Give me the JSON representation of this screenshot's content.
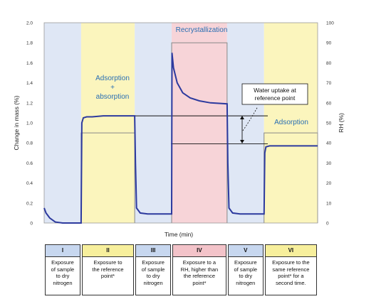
{
  "chart_data": {
    "type": "line",
    "xlabel": "Time (min)",
    "ylabel": "Change in mass (%)",
    "ylabel_right": "RH (%)",
    "ylim": [
      0,
      2.0
    ],
    "ylim_right": [
      0,
      100
    ],
    "yticks": [
      "0",
      "0.2",
      "0.4",
      "0.6",
      "0.8",
      "1.0",
      "1.2",
      "1.4",
      "1.6",
      "1.8",
      "2.0"
    ],
    "yticks_right": [
      "0",
      "10",
      "20",
      "30",
      "40",
      "50",
      "60",
      "70",
      "80",
      "90",
      "100"
    ],
    "region_labels": {
      "adsorption_absorption": [
        "Adsorption",
        "+",
        "absorption"
      ],
      "recrystallization": "Recrystallization",
      "adsorption": "Adsorption"
    },
    "callout": [
      "Water uptake at",
      "reference point"
    ],
    "colors": {
      "blue_region": "#dfe7f5",
      "yellow_region": "#fbf5bd",
      "pink_region": "#f7d4d8",
      "mass_line": "#2d3a9e",
      "rh_line": "#888888",
      "blue_header": "#c7d7ef",
      "yellow_header": "#f7ef9c",
      "pink_header": "#f3c3c9",
      "region_text": "#2a6fb3"
    },
    "phases": [
      {
        "numeral": "I",
        "color": "blue",
        "start": 0,
        "end": 1.0,
        "rh": 0,
        "lines": [
          "Exposure",
          "of sample",
          "to dry",
          "nitrogen"
        ]
      },
      {
        "numeral": "II",
        "color": "yellow",
        "start": 1.0,
        "end": 2.45,
        "rh": 45,
        "lines": [
          "Exposure to",
          "the reference",
          "point*"
        ]
      },
      {
        "numeral": "III",
        "color": "blue",
        "start": 2.45,
        "end": 3.45,
        "rh": 0,
        "lines": [
          "Exposure",
          "of sample",
          "to dry",
          "nitrogen"
        ]
      },
      {
        "numeral": "IV",
        "color": "pink",
        "start": 3.45,
        "end": 4.95,
        "rh": 90,
        "lines": [
          "Exposure to a",
          "RH, higher than",
          "the reference",
          "point*"
        ]
      },
      {
        "numeral": "V",
        "color": "blue",
        "start": 4.95,
        "end": 5.95,
        "rh": 0,
        "lines": [
          "Exposure",
          "of sample",
          "to dry",
          "nitrogen"
        ]
      },
      {
        "numeral": "VI",
        "color": "yellow",
        "start": 5.95,
        "end": 7.4,
        "rh": 45,
        "lines": [
          "Exposure to the",
          "same reference",
          "point* for a",
          "second time."
        ]
      }
    ],
    "mass_series": {
      "x": [
        0,
        0.05,
        0.15,
        0.3,
        0.5,
        0.8,
        1.0,
        1.02,
        1.06,
        1.15,
        1.3,
        1.6,
        2.0,
        2.45,
        2.47,
        2.5,
        2.6,
        2.8,
        3.1,
        3.45,
        3.46,
        3.5,
        3.6,
        3.75,
        3.95,
        4.2,
        4.5,
        4.95,
        4.97,
        5.0,
        5.1,
        5.3,
        5.6,
        5.95,
        5.97,
        6.0,
        6.1,
        6.3,
        6.8,
        7.4
      ],
      "y": [
        0.15,
        0.1,
        0.05,
        0.01,
        0.0,
        0.0,
        0.0,
        1.0,
        1.05,
        1.06,
        1.06,
        1.07,
        1.07,
        1.07,
        0.6,
        0.15,
        0.1,
        0.09,
        0.09,
        0.09,
        1.7,
        1.55,
        1.4,
        1.3,
        1.25,
        1.22,
        1.2,
        1.19,
        0.6,
        0.15,
        0.1,
        0.09,
        0.09,
        0.09,
        0.7,
        0.76,
        0.77,
        0.77,
        0.77,
        0.77
      ]
    },
    "reference_levels": {
      "upper": 1.07,
      "lower": 0.79
    }
  }
}
